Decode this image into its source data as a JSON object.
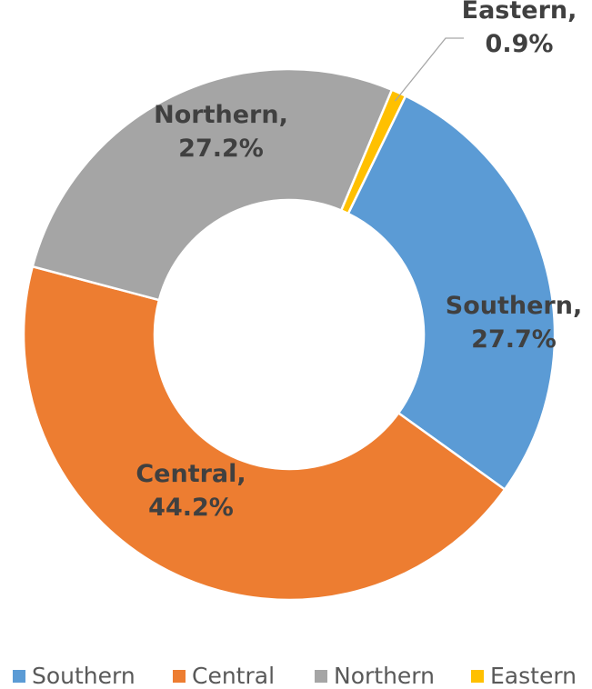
{
  "chart_data": {
    "type": "donut",
    "categories": [
      "Southern",
      "Central",
      "Northern",
      "Eastern"
    ],
    "values": [
      27.7,
      44.2,
      27.2,
      0.9
    ],
    "value_labels": [
      "Southern, 27.7%",
      "Central, 44.2%",
      "Northern, 27.2%",
      "Eastern, 0.9%"
    ],
    "colors": [
      "#5b9bd5",
      "#ed7d31",
      "#a5a5a5",
      "#ffc000"
    ],
    "legend": "bottom"
  }
}
